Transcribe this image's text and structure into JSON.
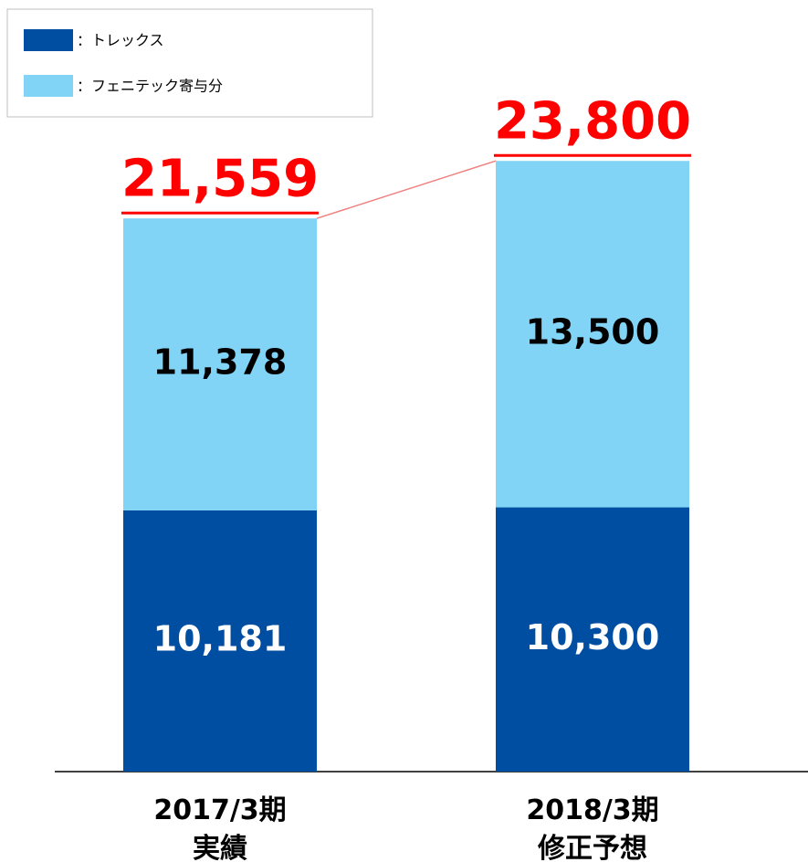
{
  "chart_data": {
    "type": "stacked_bar",
    "categories": [
      "2017/3期\n実績",
      "2018/3期\n修正予想"
    ],
    "series": [
      {
        "name": "：トレックス",
        "color": "#004ea2",
        "label_color": "#ffffff",
        "values": [
          10181,
          10300
        ],
        "value_labels": [
          "10,181",
          "10,300"
        ]
      },
      {
        "name": "：フェニテック寄与分",
        "color": "#82d4f7",
        "label_color": "#000000",
        "values": [
          11378,
          13500
        ],
        "value_labels": [
          "11,378",
          "13,500"
        ]
      }
    ],
    "totals": {
      "color": "#ff0000",
      "values": [
        21559,
        23800
      ],
      "value_labels": [
        "21,559",
        "23,800"
      ]
    },
    "ylim": [
      0,
      30000
    ],
    "legend": "top-left"
  }
}
